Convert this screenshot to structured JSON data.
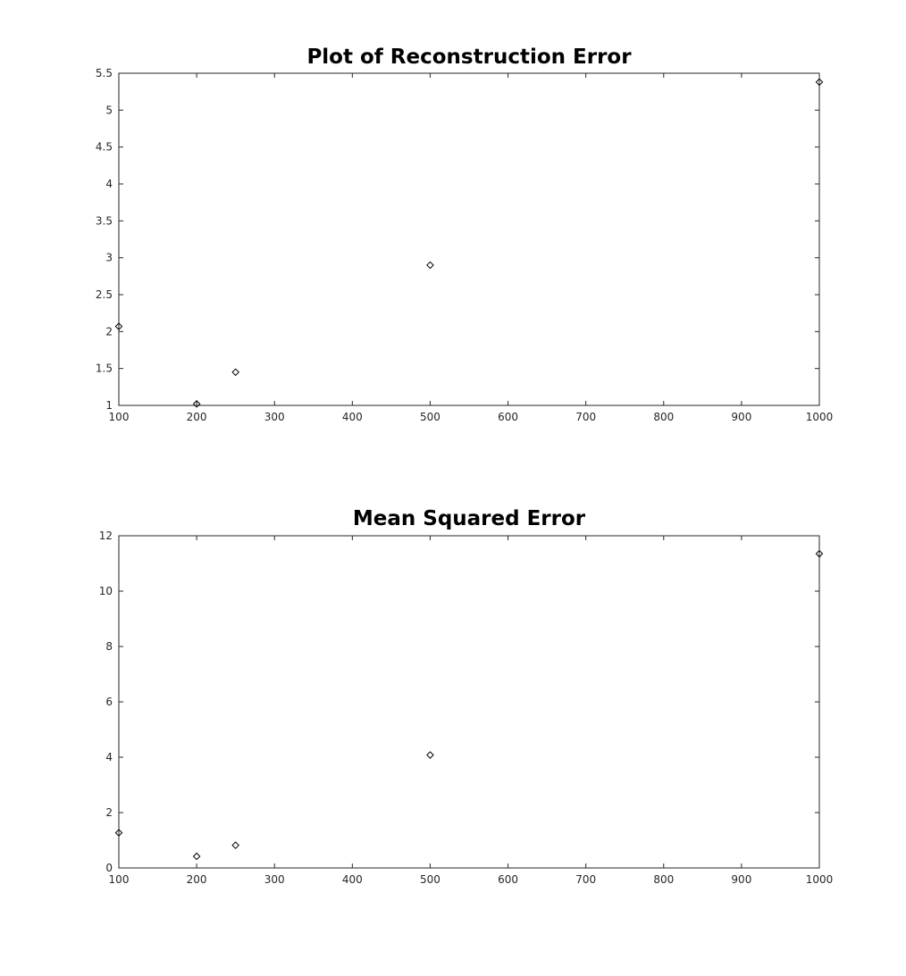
{
  "chart_data": [
    {
      "type": "scatter",
      "title": "Plot of Reconstruction Error",
      "xlabel": "",
      "ylabel": "",
      "xlim": [
        100,
        1000
      ],
      "ylim": [
        1,
        5.5
      ],
      "xticks": [
        100,
        200,
        300,
        400,
        500,
        600,
        700,
        800,
        900,
        1000
      ],
      "yticks": [
        1,
        1.5,
        2,
        2.5,
        3,
        3.5,
        4,
        4.5,
        5,
        5.5
      ],
      "grid": false,
      "marker": "diamond",
      "color": "#000000",
      "x": [
        100,
        200,
        250,
        500,
        1000
      ],
      "y": [
        2.07,
        1.02,
        1.45,
        2.9,
        5.38
      ]
    },
    {
      "type": "scatter",
      "title": "Mean Squared Error",
      "xlabel": "",
      "ylabel": "",
      "xlim": [
        100,
        1000
      ],
      "ylim": [
        0,
        12
      ],
      "xticks": [
        100,
        200,
        300,
        400,
        500,
        600,
        700,
        800,
        900,
        1000
      ],
      "yticks": [
        0,
        2,
        4,
        6,
        8,
        10,
        12
      ],
      "grid": false,
      "marker": "diamond",
      "color": "#000000",
      "x": [
        100,
        200,
        250,
        500,
        1000
      ],
      "y": [
        1.27,
        0.42,
        0.82,
        4.08,
        11.35
      ]
    }
  ]
}
